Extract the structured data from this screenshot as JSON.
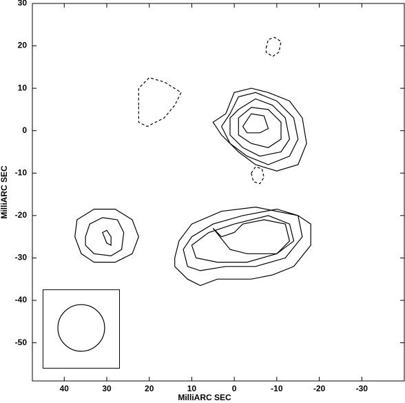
{
  "chart_data": {
    "type": "contour",
    "x_label": "MilliARC SEC",
    "y_label": "MilliARC SEC",
    "xlim": [
      47.5,
      -40
    ],
    "ylim": [
      -59,
      30
    ],
    "xticks": [
      40,
      30,
      20,
      10,
      0,
      -10,
      -20,
      -30
    ],
    "yticks": [
      30,
      20,
      10,
      0,
      -10,
      -20,
      -30,
      -40,
      -50
    ],
    "color": "#000000",
    "beam": {
      "box_x": [
        45,
        27
      ],
      "box_y": [
        -37.5,
        -56
      ],
      "x": 36,
      "y": -46.5,
      "major": 11,
      "minor": 11
    },
    "contours": [
      {
        "style": "dashed",
        "x": [
          22.5,
          22.5,
          20,
          16.5,
          12.5,
          14,
          16.5,
          20.5,
          22.5
        ],
        "y": [
          6,
          10,
          12.5,
          11.5,
          9,
          6,
          3,
          1,
          2
        ]
      },
      {
        "style": "dashed",
        "x": [
          -7.5,
          -8,
          -9.5,
          -11,
          -10.5,
          -9,
          -7.5
        ],
        "y": [
          19.5,
          21.5,
          22,
          21,
          18.5,
          17.5,
          18.5
        ]
      },
      {
        "style": "dashed",
        "x": [
          -4,
          -5,
          -6.5,
          -7,
          -6,
          -4.5
        ],
        "y": [
          -10,
          -8.5,
          -9,
          -11,
          -12.5,
          -12
        ]
      },
      {
        "style": "solid",
        "x": [
          2,
          0,
          -4,
          -8,
          -13,
          -16,
          -17,
          -15,
          -10,
          -5,
          -1,
          3,
          5
        ],
        "y": [
          4,
          9,
          10,
          9,
          7,
          3,
          -3,
          -8,
          -9.5,
          -8,
          -5,
          -1,
          2
        ]
      },
      {
        "style": "solid",
        "x": [
          1,
          -1,
          -5,
          -10,
          -14,
          -15,
          -13,
          -8,
          -3,
          1,
          3
        ],
        "y": [
          4,
          8,
          9,
          7,
          3,
          -2,
          -6,
          -8,
          -6,
          -3,
          1
        ]
      },
      {
        "style": "solid",
        "x": [
          -1,
          -5,
          -9,
          -12,
          -13,
          -11,
          -6,
          -2,
          1,
          1
        ],
        "y": [
          5,
          7.5,
          6,
          3,
          -2,
          -5,
          -6,
          -4,
          -1,
          3
        ]
      },
      {
        "style": "solid",
        "x": [
          -1,
          -4,
          -8,
          -11,
          -11,
          -8,
          -4,
          -1
        ],
        "y": [
          3,
          5.5,
          5,
          2,
          -2,
          -4,
          -3,
          -1
        ]
      },
      {
        "style": "solid",
        "x": [
          -2,
          -4,
          -7,
          -8,
          -6,
          -3
        ],
        "y": [
          1,
          4,
          3.5,
          0.5,
          -0.5,
          -0.5
        ]
      },
      {
        "style": "solid",
        "x": [
          14,
          13,
          10,
          3,
          -5,
          -15,
          -18,
          -18,
          -14,
          -9,
          -4,
          4,
          8,
          11,
          14
        ],
        "y": [
          -30,
          -26,
          -22,
          -19,
          -18,
          -20,
          -22,
          -27,
          -32,
          -34,
          -35,
          -35,
          -36.5,
          -35,
          -32
        ]
      },
      {
        "style": "solid",
        "x": [
          12,
          10,
          5,
          -2,
          -10,
          -15,
          -16,
          -12,
          -5,
          2,
          8,
          11
        ],
        "y": [
          -28,
          -25,
          -22,
          -20,
          -18.5,
          -20,
          -25,
          -30,
          -32,
          -32,
          -33,
          -32
        ]
      },
      {
        "style": "solid",
        "x": [
          10,
          6,
          0,
          -8,
          -13,
          -14,
          -10,
          -3,
          4,
          9
        ],
        "y": [
          -27,
          -24,
          -22,
          -20,
          -22,
          -26,
          -29,
          -31,
          -31,
          -30
        ]
      },
      {
        "style": "solid",
        "x": [
          5,
          3,
          0,
          -2,
          -7,
          -12,
          -13,
          -10,
          -3,
          1
        ],
        "y": [
          -23,
          -25,
          -24,
          -22,
          -21,
          -22,
          -26,
          -29,
          -29,
          -28
        ]
      },
      {
        "style": "solid",
        "x": [
          37.5,
          37,
          33,
          28,
          24,
          22.5,
          24,
          28,
          33,
          36
        ],
        "y": [
          -25,
          -21,
          -18.5,
          -18.5,
          -21,
          -25,
          -29,
          -31,
          -31,
          -29
        ]
      },
      {
        "style": "solid",
        "x": [
          35,
          34,
          31,
          27.5,
          26,
          26.5,
          29,
          33,
          35
        ],
        "y": [
          -25,
          -22,
          -20.5,
          -21,
          -24,
          -28,
          -29.5,
          -29,
          -27
        ]
      },
      {
        "style": "solid",
        "x": [
          31,
          30,
          29,
          29,
          30
        ],
        "y": [
          -24,
          -26.5,
          -27,
          -25,
          -23.5
        ]
      }
    ]
  }
}
